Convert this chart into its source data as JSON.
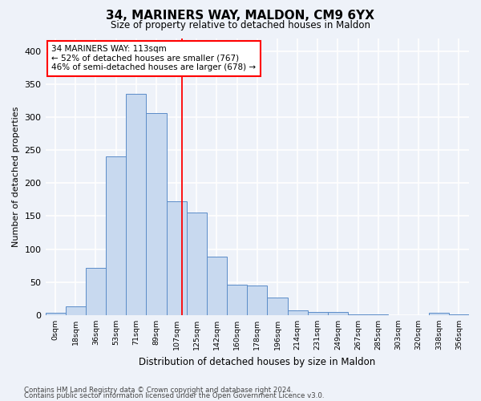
{
  "title_line1": "34, MARINERS WAY, MALDON, CM9 6YX",
  "title_line2": "Size of property relative to detached houses in Maldon",
  "xlabel": "Distribution of detached houses by size in Maldon",
  "ylabel": "Number of detached properties",
  "bar_labels": [
    "0sqm",
    "18sqm",
    "36sqm",
    "53sqm",
    "71sqm",
    "89sqm",
    "107sqm",
    "125sqm",
    "142sqm",
    "160sqm",
    "178sqm",
    "196sqm",
    "214sqm",
    "231sqm",
    "249sqm",
    "267sqm",
    "285sqm",
    "303sqm",
    "320sqm",
    "338sqm",
    "356sqm"
  ],
  "bar_values": [
    3,
    13,
    71,
    240,
    335,
    306,
    172,
    155,
    88,
    46,
    45,
    26,
    7,
    5,
    5,
    1,
    1,
    0,
    0,
    3,
    1
  ],
  "bar_color": "#c8d9ef",
  "bar_edge_color": "#5b8cc8",
  "vline_x": 6.27,
  "annotation_text": "34 MARINERS WAY: 113sqm\n← 52% of detached houses are smaller (767)\n46% of semi-detached houses are larger (678) →",
  "ylim": [
    0,
    420
  ],
  "yticks": [
    0,
    50,
    100,
    150,
    200,
    250,
    300,
    350,
    400
  ],
  "footer_line1": "Contains HM Land Registry data © Crown copyright and database right 2024.",
  "footer_line2": "Contains public sector information licensed under the Open Government Licence v3.0.",
  "background_color": "#eef2f9",
  "grid_color": "white"
}
